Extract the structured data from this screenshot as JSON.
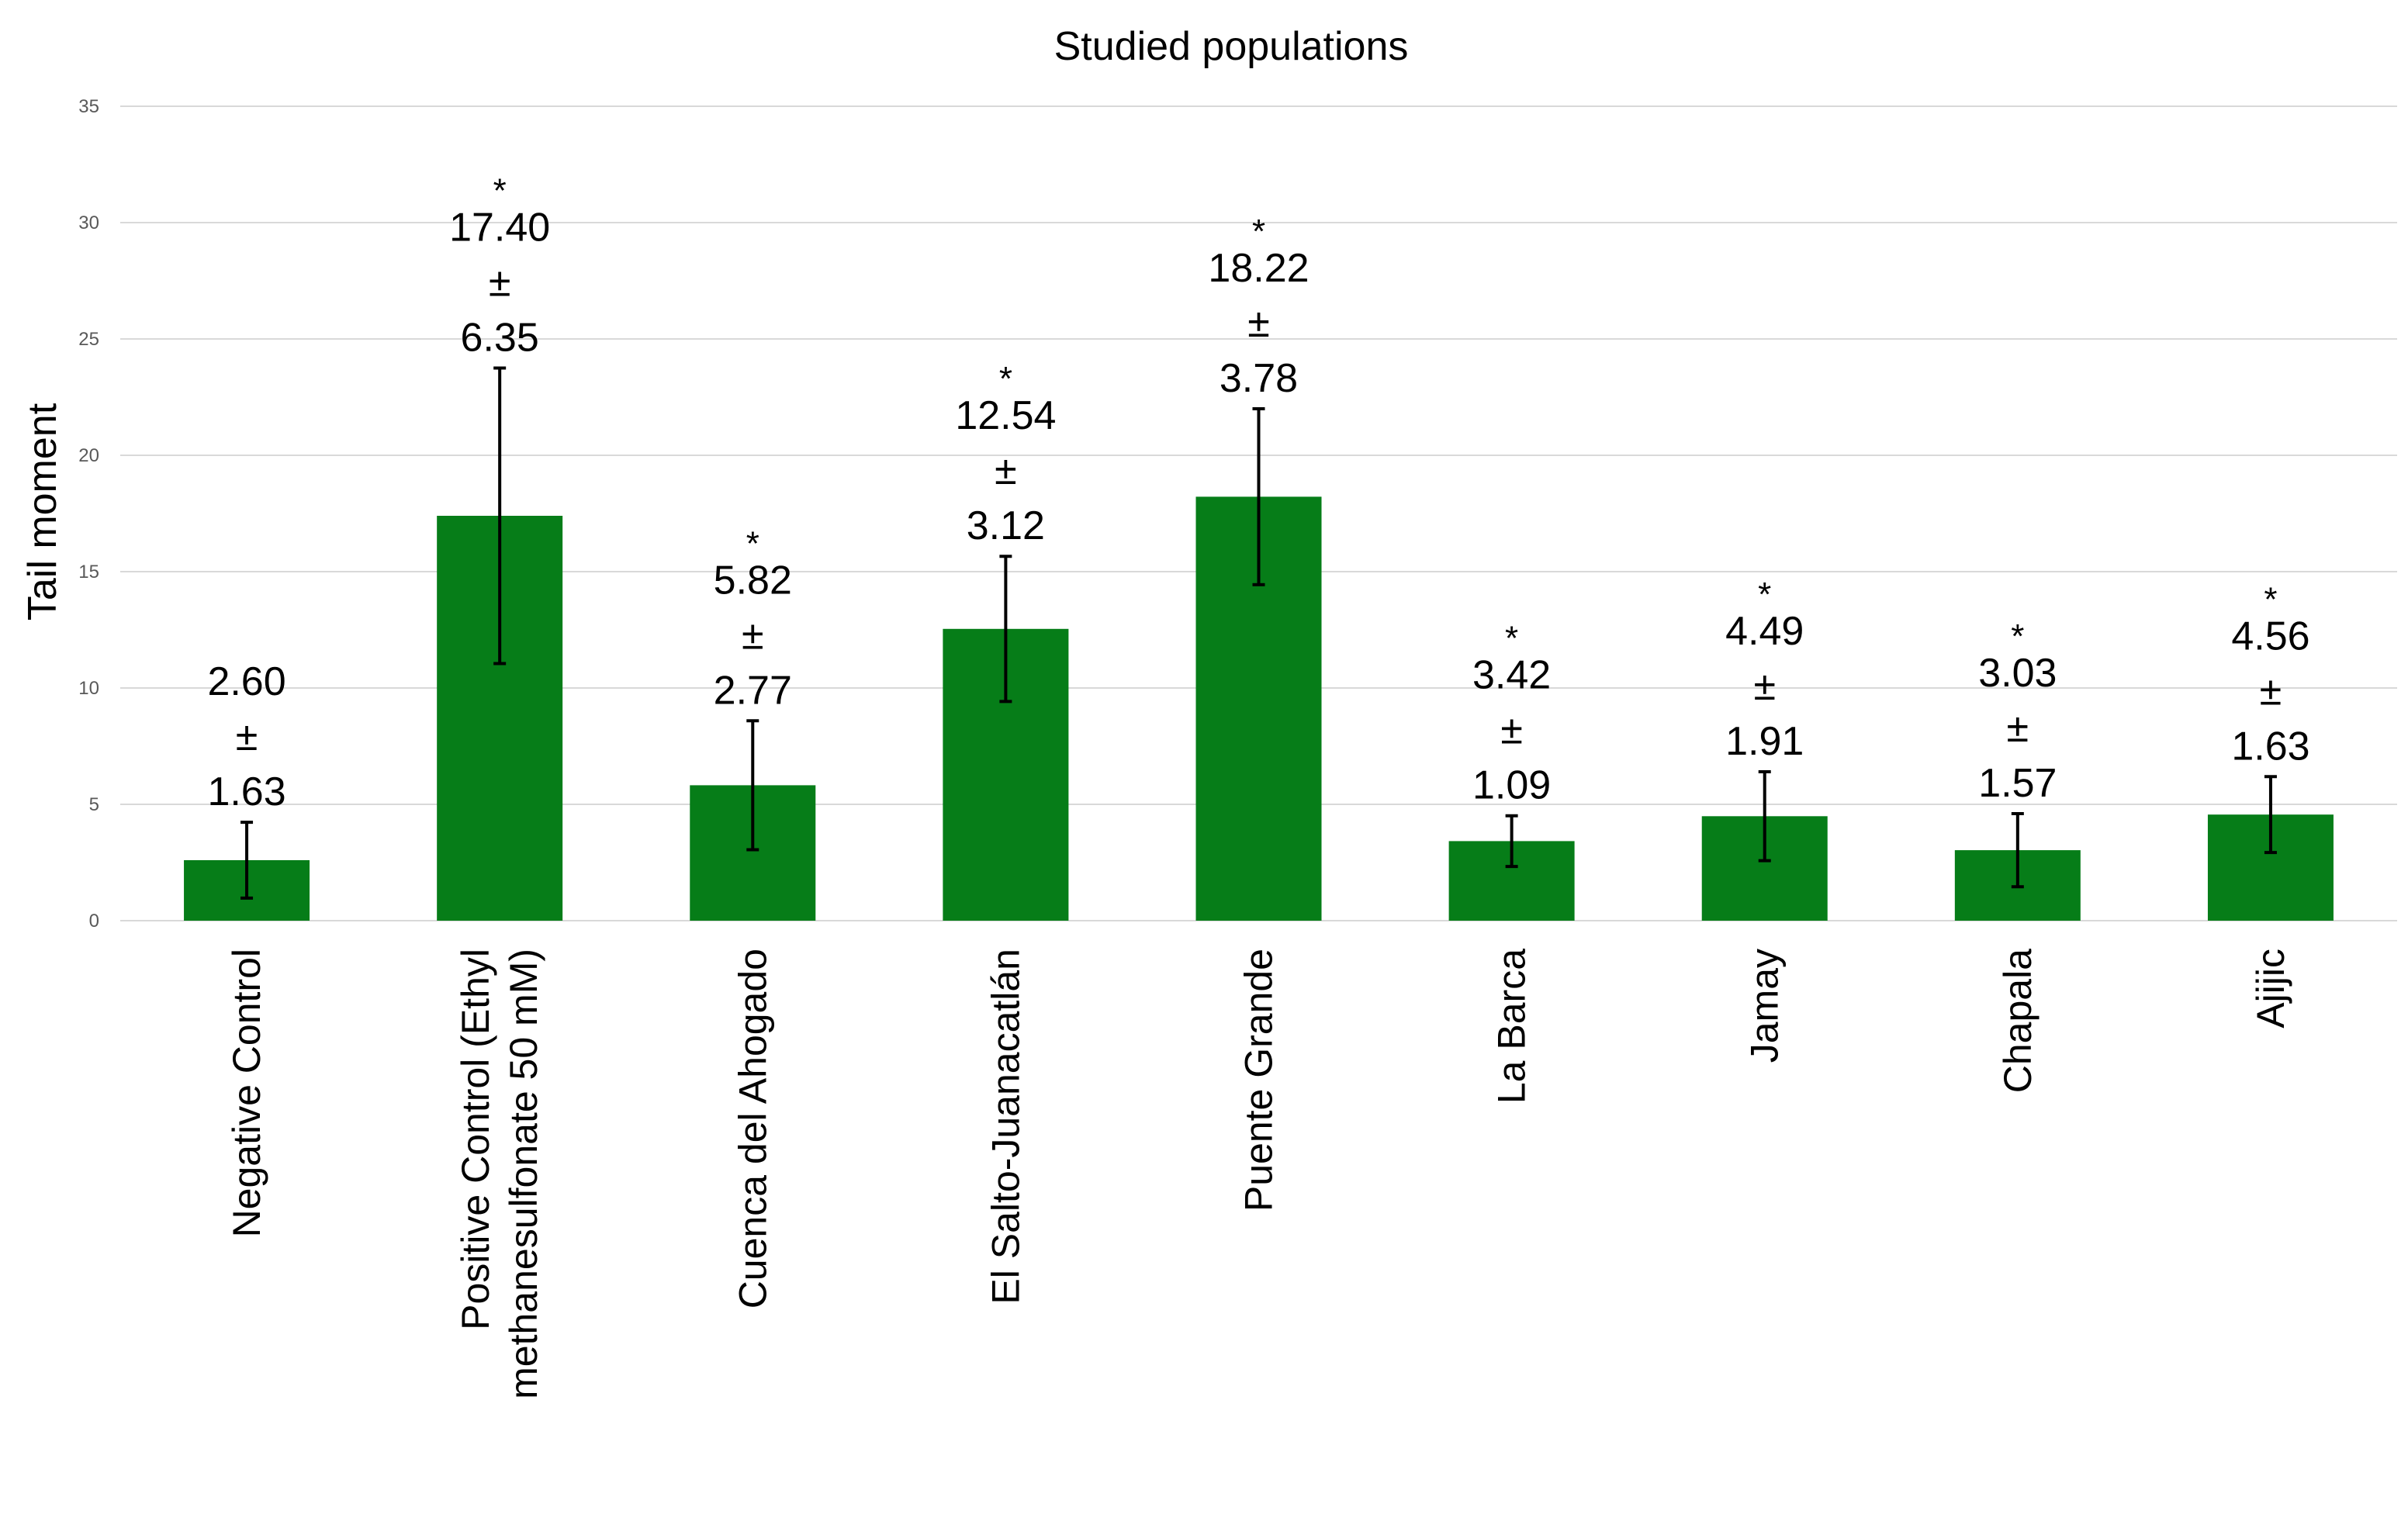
{
  "chart_data": {
    "type": "bar",
    "title": "Studied populations",
    "xlabel": "",
    "ylabel": "Tail moment",
    "ylim": [
      0,
      35
    ],
    "yticks": [
      0,
      5,
      10,
      15,
      20,
      25,
      30,
      35
    ],
    "grid": true,
    "bar_color": "#067D18",
    "categories": [
      "Negative Control",
      "Positive Control (Ethyl methanesulfonate 50 mM)",
      "Cuenca del Ahogado",
      "El Salto-Juanacatlán",
      "Puente Grande",
      "La Barca",
      "Jamay",
      "Chapala",
      "Ajijic"
    ],
    "category_label_lines": [
      [
        "Negative Control"
      ],
      [
        "Positive Control (Ethyl",
        "methanesulfonate 50 mM)"
      ],
      [
        "Cuenca del Ahogado"
      ],
      [
        "El Salto-Juanacatlán"
      ],
      [
        "Puente Grande"
      ],
      [
        "La Barca"
      ],
      [
        "Jamay"
      ],
      [
        "Chapala"
      ],
      [
        "Ajijic"
      ]
    ],
    "values": [
      2.6,
      17.4,
      5.82,
      12.54,
      18.22,
      3.42,
      4.49,
      3.03,
      4.56
    ],
    "errors": [
      1.63,
      6.35,
      2.77,
      3.12,
      3.78,
      1.09,
      1.91,
      1.57,
      1.63
    ],
    "data_labels": [
      [
        "2.60",
        "±",
        "1.63"
      ],
      [
        "17.40",
        "±",
        "6.35"
      ],
      [
        "5.82",
        "±",
        "2.77"
      ],
      [
        "12.54",
        "±",
        "3.12"
      ],
      [
        "18.22",
        "±",
        "3.78"
      ],
      [
        "3.42",
        "±",
        "1.09"
      ],
      [
        "4.49",
        "±",
        "1.91"
      ],
      [
        "3.03",
        "±",
        "1.57"
      ],
      [
        "4.56",
        "±",
        "1.63"
      ]
    ],
    "significance_marks": [
      "",
      "*",
      "*",
      "*",
      "*",
      "*",
      "*",
      "*",
      "*"
    ]
  }
}
